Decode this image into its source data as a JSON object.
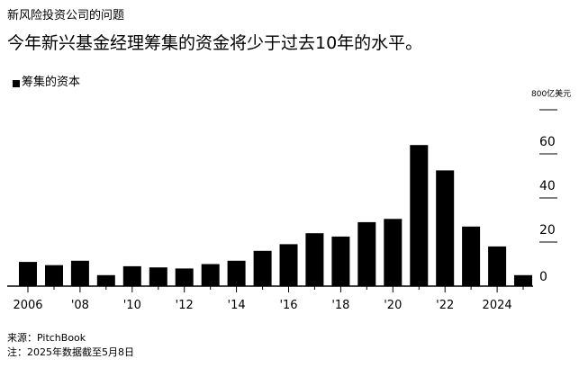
{
  "kicker": "新风险投资公司的问题",
  "headline": "今年新兴基金经理筹集的资金将少于过去10年的水平。",
  "legend": {
    "label": "筹集的资本"
  },
  "source": "来源：PitchBook",
  "note": "注：2025年数据截至5月8日",
  "colors": {
    "bar": "#000000",
    "axis": "#000000",
    "text": "#000000"
  },
  "chart_data": {
    "type": "bar",
    "series": [
      {
        "name": "筹集的资本",
        "color": "#000000",
        "values": [
          11,
          9.5,
          11.5,
          5,
          9,
          8.5,
          8,
          10,
          11.5,
          16,
          19,
          24,
          22.5,
          29,
          30.5,
          64,
          52.5,
          27,
          18,
          5
        ]
      }
    ],
    "x": [
      2006,
      2007,
      2008,
      2009,
      2010,
      2011,
      2012,
      2013,
      2014,
      2015,
      2016,
      2017,
      2018,
      2019,
      2020,
      2021,
      2022,
      2023,
      2024,
      2025
    ],
    "x_tick_labels": [
      "2006",
      "'08",
      "'10",
      "'12",
      "'14",
      "'16",
      "'18",
      "'20",
      "'22",
      "2024"
    ],
    "y_unit_label": "800亿美元",
    "y_ticks": [
      "0",
      "20",
      "40",
      "60",
      ""
    ],
    "ylim": [
      0,
      80
    ],
    "yaxis_position": "right",
    "grid": false,
    "legend_position": "top-left"
  }
}
